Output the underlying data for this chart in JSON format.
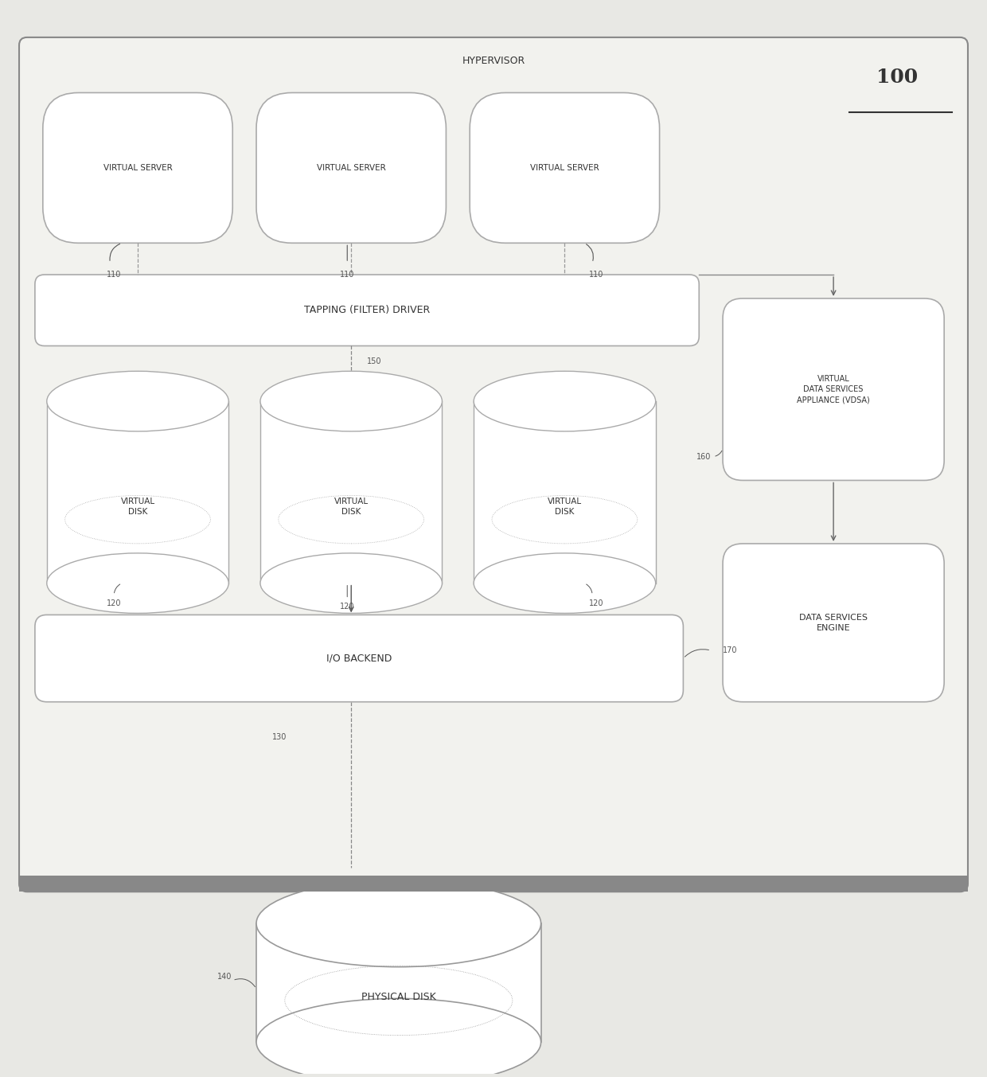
{
  "fig_width": 12.4,
  "fig_height": 13.53,
  "bg_color": "#e8e8e4",
  "box_edge_color": "#aaaaaa",
  "dark_edge_color": "#888888",
  "text_color": "#333333",
  "ref_color": "#555555",
  "hypervisor_label": "HYPERVISOR",
  "tapping_driver_label": "TAPPING (FILTER) DRIVER",
  "io_backend_label": "I/O BACKEND",
  "virtual_server_label": "VIRTUAL SERVER",
  "virtual_disk_label": "VIRTUAL\nDISK",
  "physical_disk_label": "PHYSICAL DISK",
  "vdsa_label": "VIRTUAL\nDATA SERVICES\nAPPLIANCE (VDSA)",
  "dse_label": "DATA SERVICES\nENGINE",
  "ref_100": "100",
  "ref_110": "110",
  "ref_120": "120",
  "ref_130": "130",
  "ref_140": "140",
  "ref_150": "150",
  "ref_160": "160",
  "ref_170": "170"
}
